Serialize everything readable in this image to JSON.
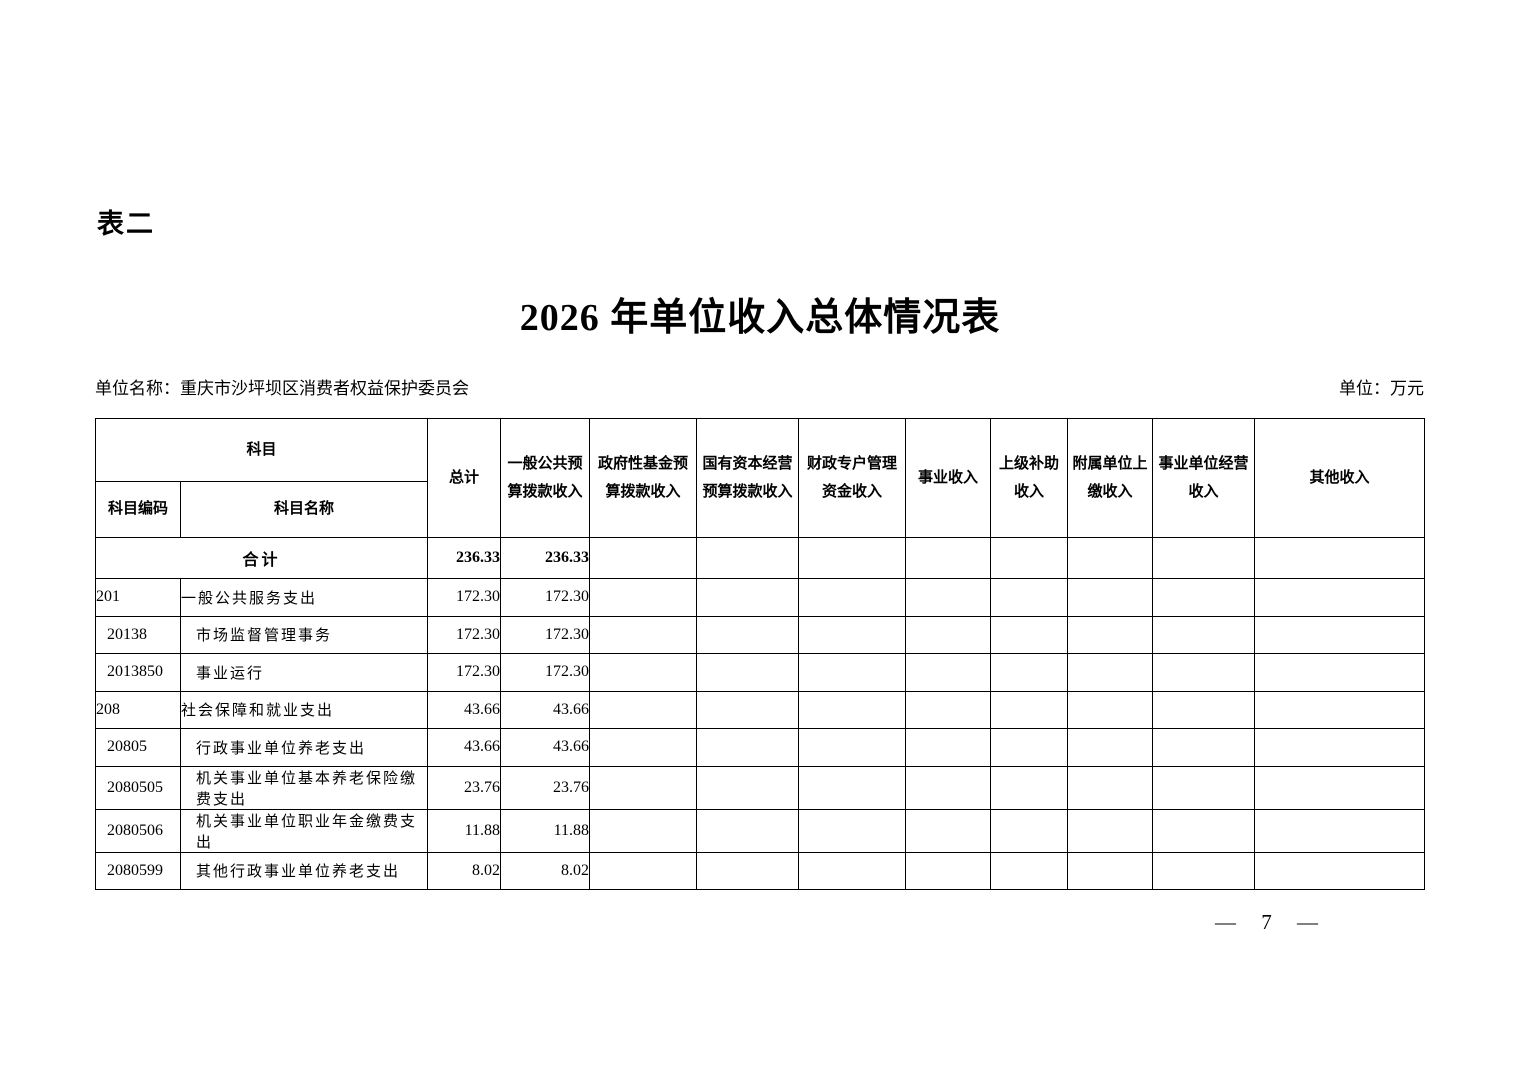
{
  "page": {
    "table_label": "表二",
    "title": "2026 年单位收入总体情况表",
    "unit_name": "单位名称：重庆市沙坪坝区消费者权益保护委员会",
    "unit_of_measure": "单位：万元",
    "page_number": "— 7 —"
  },
  "table": {
    "header": {
      "subject": "科目",
      "subject_code": "科目编码",
      "subject_name": "科目名称",
      "columns": [
        "总计",
        "一般公共预\n算拨款收入",
        "政府性基金预\n算拨款收入",
        "国有资本经营\n预算拨款收入",
        "财政专户管理\n资金收入",
        "事业收入",
        "上级补助\n收入",
        "附属单位上\n缴收入",
        "事业单位经营\n收入",
        "其他收入"
      ]
    },
    "total_row": {
      "label": "合计",
      "values": [
        "236.33",
        "236.33",
        "",
        "",
        "",
        "",
        "",
        "",
        "",
        ""
      ]
    },
    "rows": [
      {
        "code": "201",
        "name": "一般公共服务支出",
        "level": 0,
        "values": [
          "172.30",
          "172.30",
          "",
          "",
          "",
          "",
          "",
          "",
          "",
          ""
        ]
      },
      {
        "code": "20138",
        "name": "市场监督管理事务",
        "level": 1,
        "values": [
          "172.30",
          "172.30",
          "",
          "",
          "",
          "",
          "",
          "",
          "",
          ""
        ]
      },
      {
        "code": "2013850",
        "name": "事业运行",
        "level": 1,
        "values": [
          "172.30",
          "172.30",
          "",
          "",
          "",
          "",
          "",
          "",
          "",
          ""
        ]
      },
      {
        "code": "208",
        "name": "社会保障和就业支出",
        "level": 0,
        "values": [
          "43.66",
          "43.66",
          "",
          "",
          "",
          "",
          "",
          "",
          "",
          ""
        ]
      },
      {
        "code": "20805",
        "name": "行政事业单位养老支出",
        "level": 1,
        "values": [
          "43.66",
          "43.66",
          "",
          "",
          "",
          "",
          "",
          "",
          "",
          ""
        ]
      },
      {
        "code": "2080505",
        "name": "机关事业单位基本养老保险缴费支出",
        "level": 1,
        "values": [
          "23.76",
          "23.76",
          "",
          "",
          "",
          "",
          "",
          "",
          "",
          ""
        ]
      },
      {
        "code": "2080506",
        "name": "机关事业单位职业年金缴费支出",
        "level": 1,
        "values": [
          "11.88",
          "11.88",
          "",
          "",
          "",
          "",
          "",
          "",
          "",
          ""
        ]
      },
      {
        "code": "2080599",
        "name": "其他行政事业单位养老支出",
        "level": 1,
        "values": [
          "8.02",
          "8.02",
          "",
          "",
          "",
          "",
          "",
          "",
          "",
          ""
        ]
      }
    ]
  }
}
